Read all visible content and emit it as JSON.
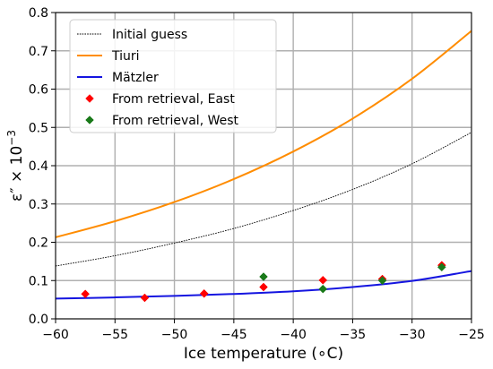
{
  "chart_data": {
    "type": "line",
    "title": "",
    "xlabel": "Ice temperature (∘C)",
    "ylabel_main": "ε″ × 10",
    "ylabel_exp": "−3",
    "xlim": [
      -60,
      -25
    ],
    "ylim": [
      0.0,
      0.8
    ],
    "xticks": [
      -60,
      -55,
      -50,
      -45,
      -40,
      -35,
      -30,
      -25
    ],
    "yticks": [
      0.0,
      0.1,
      0.2,
      0.3,
      0.4,
      0.5,
      0.6,
      0.7,
      0.8
    ],
    "xtick_labels": [
      "−60",
      "−55",
      "−50",
      "−45",
      "−40",
      "−35",
      "−30",
      "−25"
    ],
    "ytick_labels": [
      "0.0",
      "0.1",
      "0.2",
      "0.3",
      "0.4",
      "0.5",
      "0.6",
      "0.7",
      "0.8"
    ],
    "grid": true,
    "legend_position": "top-left",
    "series": [
      {
        "name": "Initial guess",
        "kind": "line",
        "style": "dotted",
        "color": "#000000",
        "x": [
          -60,
          -55,
          -50,
          -45,
          -40,
          -35,
          -30,
          -25
        ],
        "y": [
          0.138,
          0.165,
          0.198,
          0.236,
          0.283,
          0.338,
          0.405,
          0.487
        ]
      },
      {
        "name": "Tiuri",
        "kind": "line",
        "style": "solid",
        "color": "#ff8c00",
        "x": [
          -60,
          -55,
          -50,
          -45,
          -40,
          -35,
          -30,
          -25
        ],
        "y": [
          0.213,
          0.255,
          0.305,
          0.365,
          0.437,
          0.523,
          0.627,
          0.752
        ]
      },
      {
        "name": "Mätzler",
        "kind": "line",
        "style": "solid",
        "color": "#1515e0",
        "x": [
          -60,
          -55,
          -50,
          -45,
          -40,
          -35,
          -30,
          -25
        ],
        "y": [
          0.053,
          0.056,
          0.06,
          0.065,
          0.072,
          0.083,
          0.099,
          0.125
        ]
      },
      {
        "name": "From retrieval, East",
        "kind": "scatter",
        "marker": "diamond",
        "color": "#ff0000",
        "x": [
          -57.5,
          -52.5,
          -47.5,
          -42.5,
          -37.5,
          -32.5,
          -27.5
        ],
        "y": [
          0.065,
          0.055,
          0.066,
          0.083,
          0.101,
          0.104,
          0.14
        ]
      },
      {
        "name": "From retrieval, West",
        "kind": "scatter",
        "marker": "diamond",
        "color": "#1a7a1a",
        "x": [
          -42.5,
          -37.5,
          -32.5,
          -27.5
        ],
        "y": [
          0.11,
          0.078,
          0.1,
          0.135
        ]
      }
    ]
  }
}
